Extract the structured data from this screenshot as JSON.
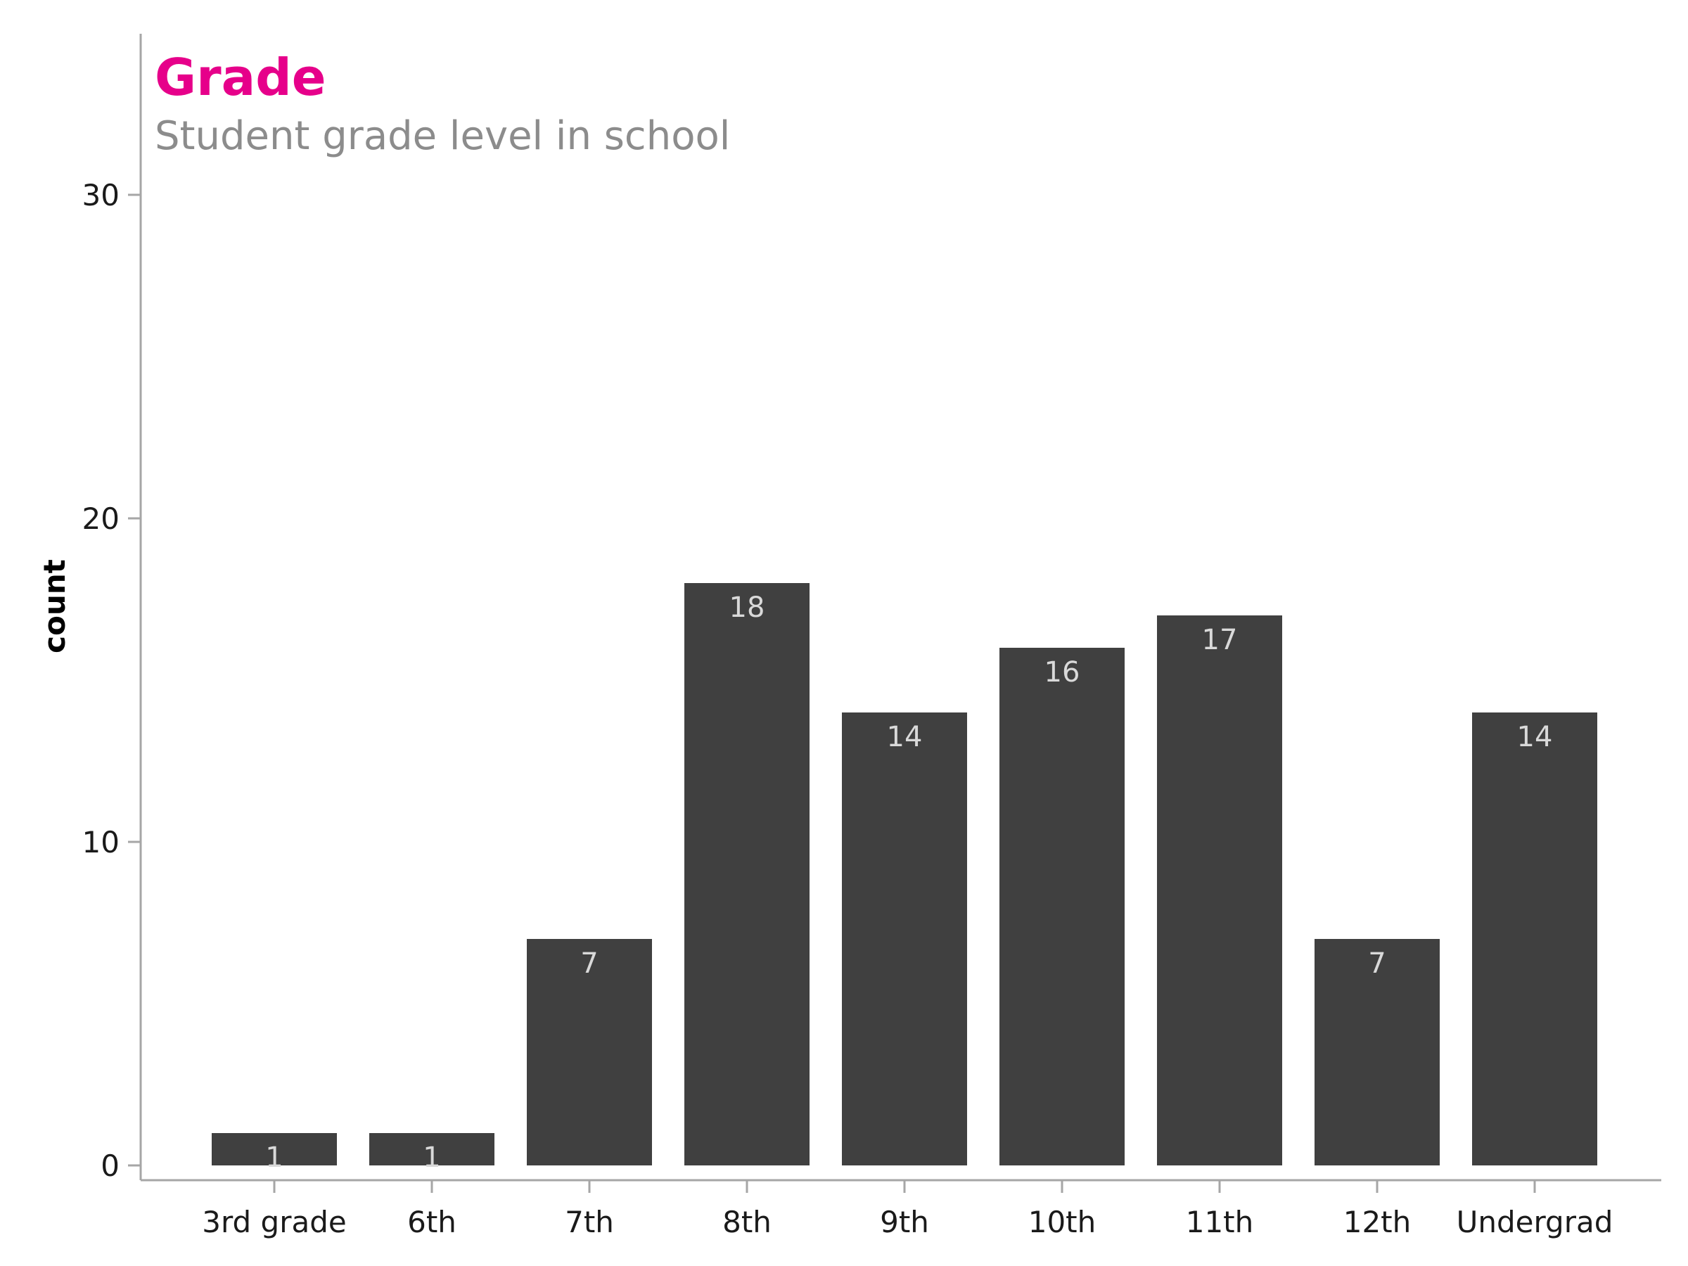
{
  "chart_data": {
    "type": "bar",
    "title": "Grade",
    "subtitle": "Student grade level in school",
    "xlabel": "",
    "ylabel": "count",
    "categories": [
      "3rd grade",
      "6th",
      "7th",
      "8th",
      "9th",
      "10th",
      "11th",
      "12th",
      "Undergrad"
    ],
    "values": [
      1,
      1,
      7,
      18,
      14,
      16,
      17,
      7,
      14
    ],
    "data_labels": [
      "1",
      "1",
      "7",
      "18",
      "14",
      "16",
      "17",
      "7",
      "14"
    ],
    "ylim": [
      0,
      35
    ],
    "yticks": [
      0,
      10,
      20,
      30
    ],
    "ytick_labels": [
      "0",
      "10",
      "20",
      "30"
    ],
    "grid": false,
    "legend": "none",
    "colors": {
      "bar": "#404040",
      "title": "#e6008a",
      "subtitle": "#8c8c8c",
      "axis": "#a6a6a6",
      "data_label": "#d9d9d9"
    }
  }
}
